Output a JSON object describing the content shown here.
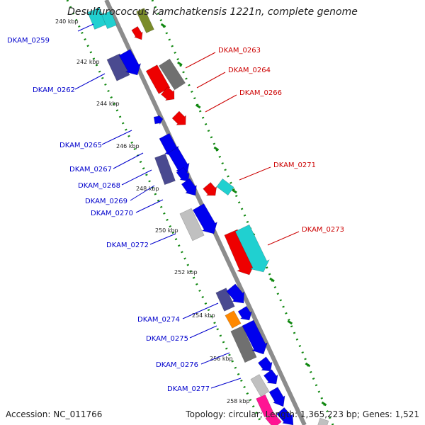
{
  "title": "Desulfurococcus kamchatkensis 1221n, complete genome",
  "footer": {
    "accession": "Accession: NC_011766",
    "topology": "Topology: circular; Length: 1,365,223 bp; Genes: 1,521"
  },
  "colors": {
    "label_left": "#0000cc",
    "label_right": "#cc0000",
    "backbone": "#8c8c8c",
    "tick_dots": "#118811",
    "navy": "#4a4a90",
    "blue": "#0000ee",
    "red": "#ee0000",
    "gray": "#707070",
    "lightgray": "#c0c0c0",
    "cyan": "#20d0d0",
    "orange": "#ff8800",
    "pink": "#ff1493",
    "olive": "#7a8c2a"
  },
  "scale_ticks": [
    "240 kbp",
    "242 kbp",
    "244 kbp",
    "246 kbp",
    "248 kbp",
    "250 kbp",
    "252 kbp",
    "254 kbp",
    "256 kbp",
    "258 kbp"
  ],
  "gene_labels_left": [
    "DKAM_0259",
    "DKAM_0262",
    "DKAM_0265",
    "DKAM_0267",
    "DKAM_0268",
    "DKAM_0269",
    "DKAM_0270",
    "DKAM_0272",
    "DKAM_0274",
    "DKAM_0275",
    "DKAM_0276",
    "DKAM_0277"
  ],
  "gene_labels_right": [
    "DKAM_0263",
    "DKAM_0264",
    "DKAM_0266",
    "DKAM_0271",
    "DKAM_0273"
  ]
}
